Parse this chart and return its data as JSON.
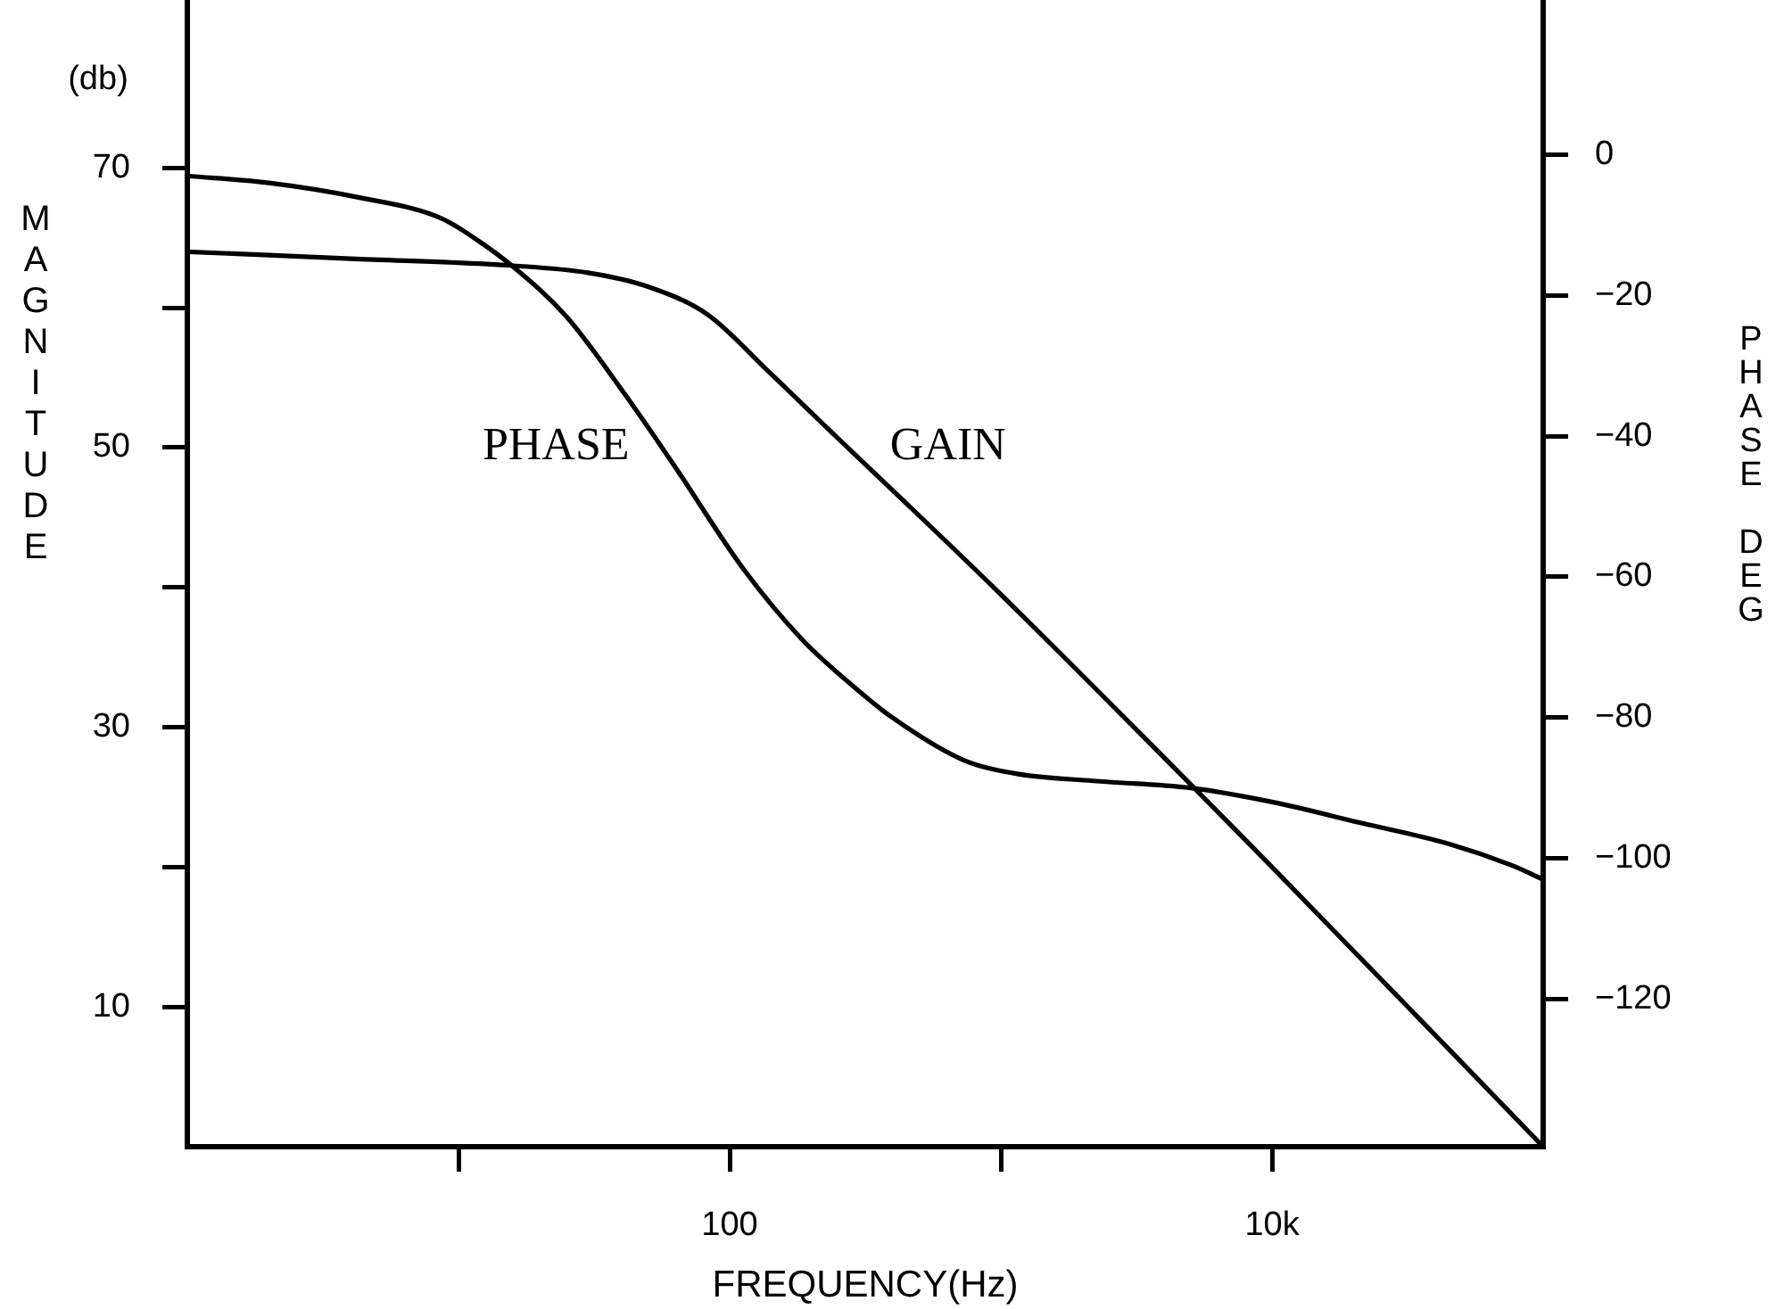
{
  "chart_data": {
    "type": "line",
    "xlabel": "FREQUENCY(Hz)",
    "ylabel": "MAGNITUDE",
    "y2label": "PHASE DEG",
    "annotations": [
      "(db)"
    ],
    "log": "x",
    "xlim": [
      1,
      100000
    ],
    "xticks": [
      {
        "value": 10,
        "label": null
      },
      100,
      {
        "value": 1000,
        "label": null
      },
      {
        "value": 10000,
        "label": "10k"
      }
    ],
    "ylim": [
      0,
      82
    ],
    "yticks": [
      10,
      {
        "value": 20,
        "label": null
      },
      30,
      {
        "value": 40,
        "label": null
      },
      50,
      {
        "value": 60,
        "label": null
      },
      70
    ],
    "y2lim": [
      -141,
      22
    ],
    "y2ticks": [
      0,
      -20,
      -40,
      -60,
      -80,
      -100,
      -120
    ],
    "series": [
      {
        "name": "GAIN",
        "color": "#000000",
        "x": [
          1,
          4,
          16,
          30,
          50,
          83,
          138,
          226,
          940,
          10000,
          100000
        ],
        "values": [
          64,
          63.5,
          63,
          62.5,
          61.5,
          59.5,
          55.5,
          51.5,
          40,
          20,
          0
        ]
      },
      {
        "name": "PHASE",
        "color": "#000000",
        "axis": "y2",
        "x": [
          1,
          2,
          4.2,
          8.6,
          11.6,
          16,
          25,
          41,
          62,
          113,
          186,
          295,
          398,
          724,
          1150,
          2190,
          5000,
          10000,
          21400,
          45300,
          76500,
          100000
        ],
        "values": [
          -3,
          -4,
          -6,
          -9,
          -12,
          -16,
          -23,
          -34,
          -44,
          -59,
          -69,
          -76,
          -80,
          -86,
          -88,
          -89,
          -90,
          -92,
          -95,
          -98,
          -101,
          -103
        ]
      }
    ]
  }
}
